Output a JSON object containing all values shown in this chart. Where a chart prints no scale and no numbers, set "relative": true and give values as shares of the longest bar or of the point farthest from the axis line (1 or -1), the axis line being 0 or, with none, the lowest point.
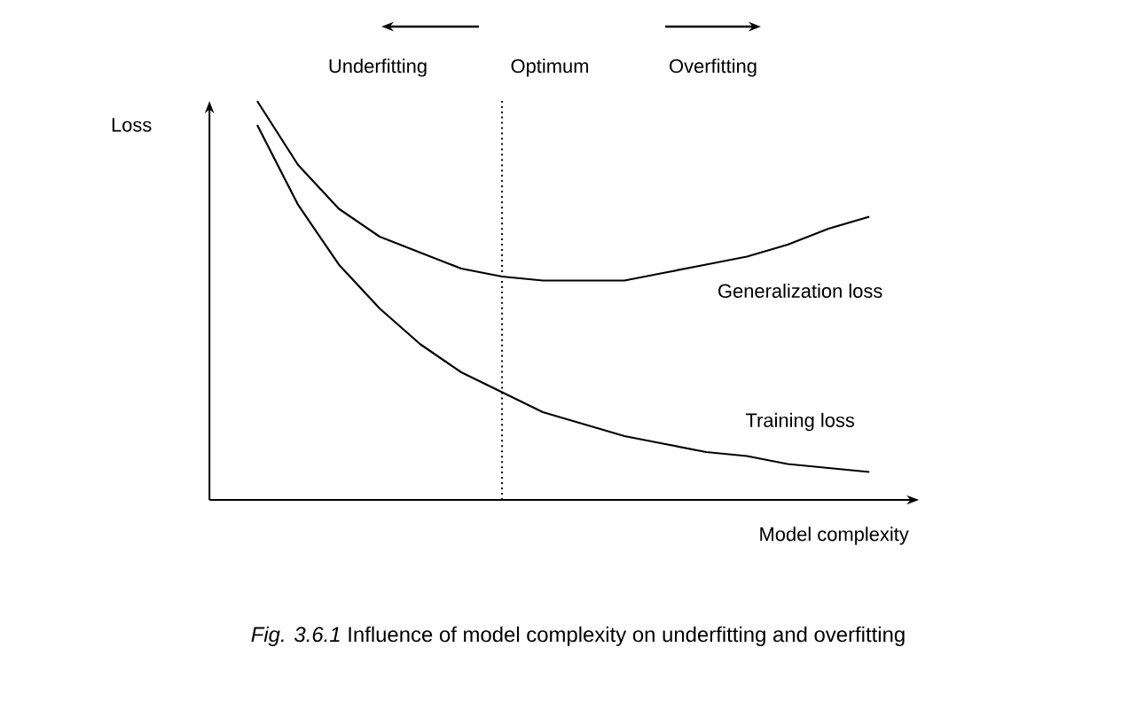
{
  "chart_data": {
    "type": "line",
    "relative": true,
    "xlabel": "Model complexity",
    "ylabel": "Loss",
    "categories": [
      null,
      null,
      null,
      null,
      null,
      null,
      null,
      null,
      null,
      null,
      null,
      null,
      null,
      null,
      null,
      null
    ],
    "series": [
      {
        "name": "Generalization loss",
        "color": "#000000",
        "values": [
          1.0,
          0.84,
          0.73,
          0.66,
          0.62,
          0.58,
          0.56,
          0.55,
          0.55,
          0.55,
          0.57,
          0.59,
          0.61,
          0.64,
          0.68,
          0.71
        ]
      },
      {
        "name": "Training loss",
        "color": "#000000",
        "values": [
          0.94,
          0.74,
          0.59,
          0.48,
          0.39,
          0.32,
          0.27,
          0.22,
          0.19,
          0.16,
          0.14,
          0.12,
          0.11,
          0.09,
          0.08,
          0.07
        ]
      }
    ],
    "annotations": [
      "Underfitting",
      "Optimum",
      "Overfitting",
      "*Fig. 3.6.1* Influence of model complexity on underfitting and overfitting"
    ],
    "legend": false,
    "marker": "none",
    "line_style": "solid"
  }
}
